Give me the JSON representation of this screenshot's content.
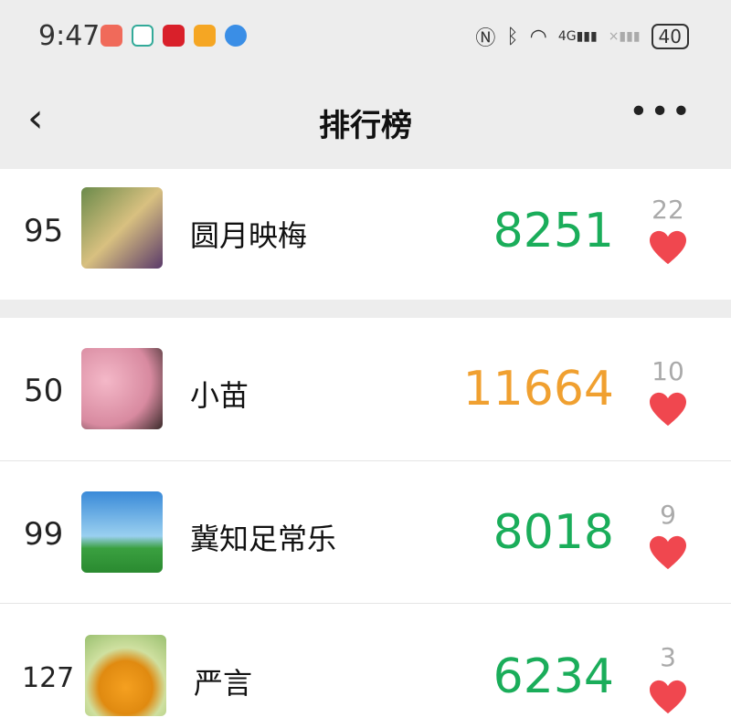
{
  "status_bar": {
    "time": "9:47",
    "battery": "40",
    "network": "4G"
  },
  "header": {
    "title": "排行榜",
    "back_icon": "chevron-left-icon",
    "more_icon": "more-icon"
  },
  "my_rank": {
    "rank": "95",
    "name": "圆月映梅",
    "steps": "8251",
    "likes": "22",
    "steps_color": "#1aad5a"
  },
  "rankings": [
    {
      "rank": "50",
      "name": "小苗",
      "steps": "11664",
      "likes": "10",
      "steps_color": "#f0a030"
    },
    {
      "rank": "99",
      "name": "冀知足常乐",
      "steps": "8018",
      "likes": "9",
      "steps_color": "#1aad5a"
    },
    {
      "rank": "127",
      "name": "严言",
      "steps": "6234",
      "likes": "3",
      "steps_color": "#1aad5a"
    }
  ],
  "colors": {
    "heart": "#f0474f",
    "green": "#1aad5a",
    "orange": "#f0a030"
  }
}
